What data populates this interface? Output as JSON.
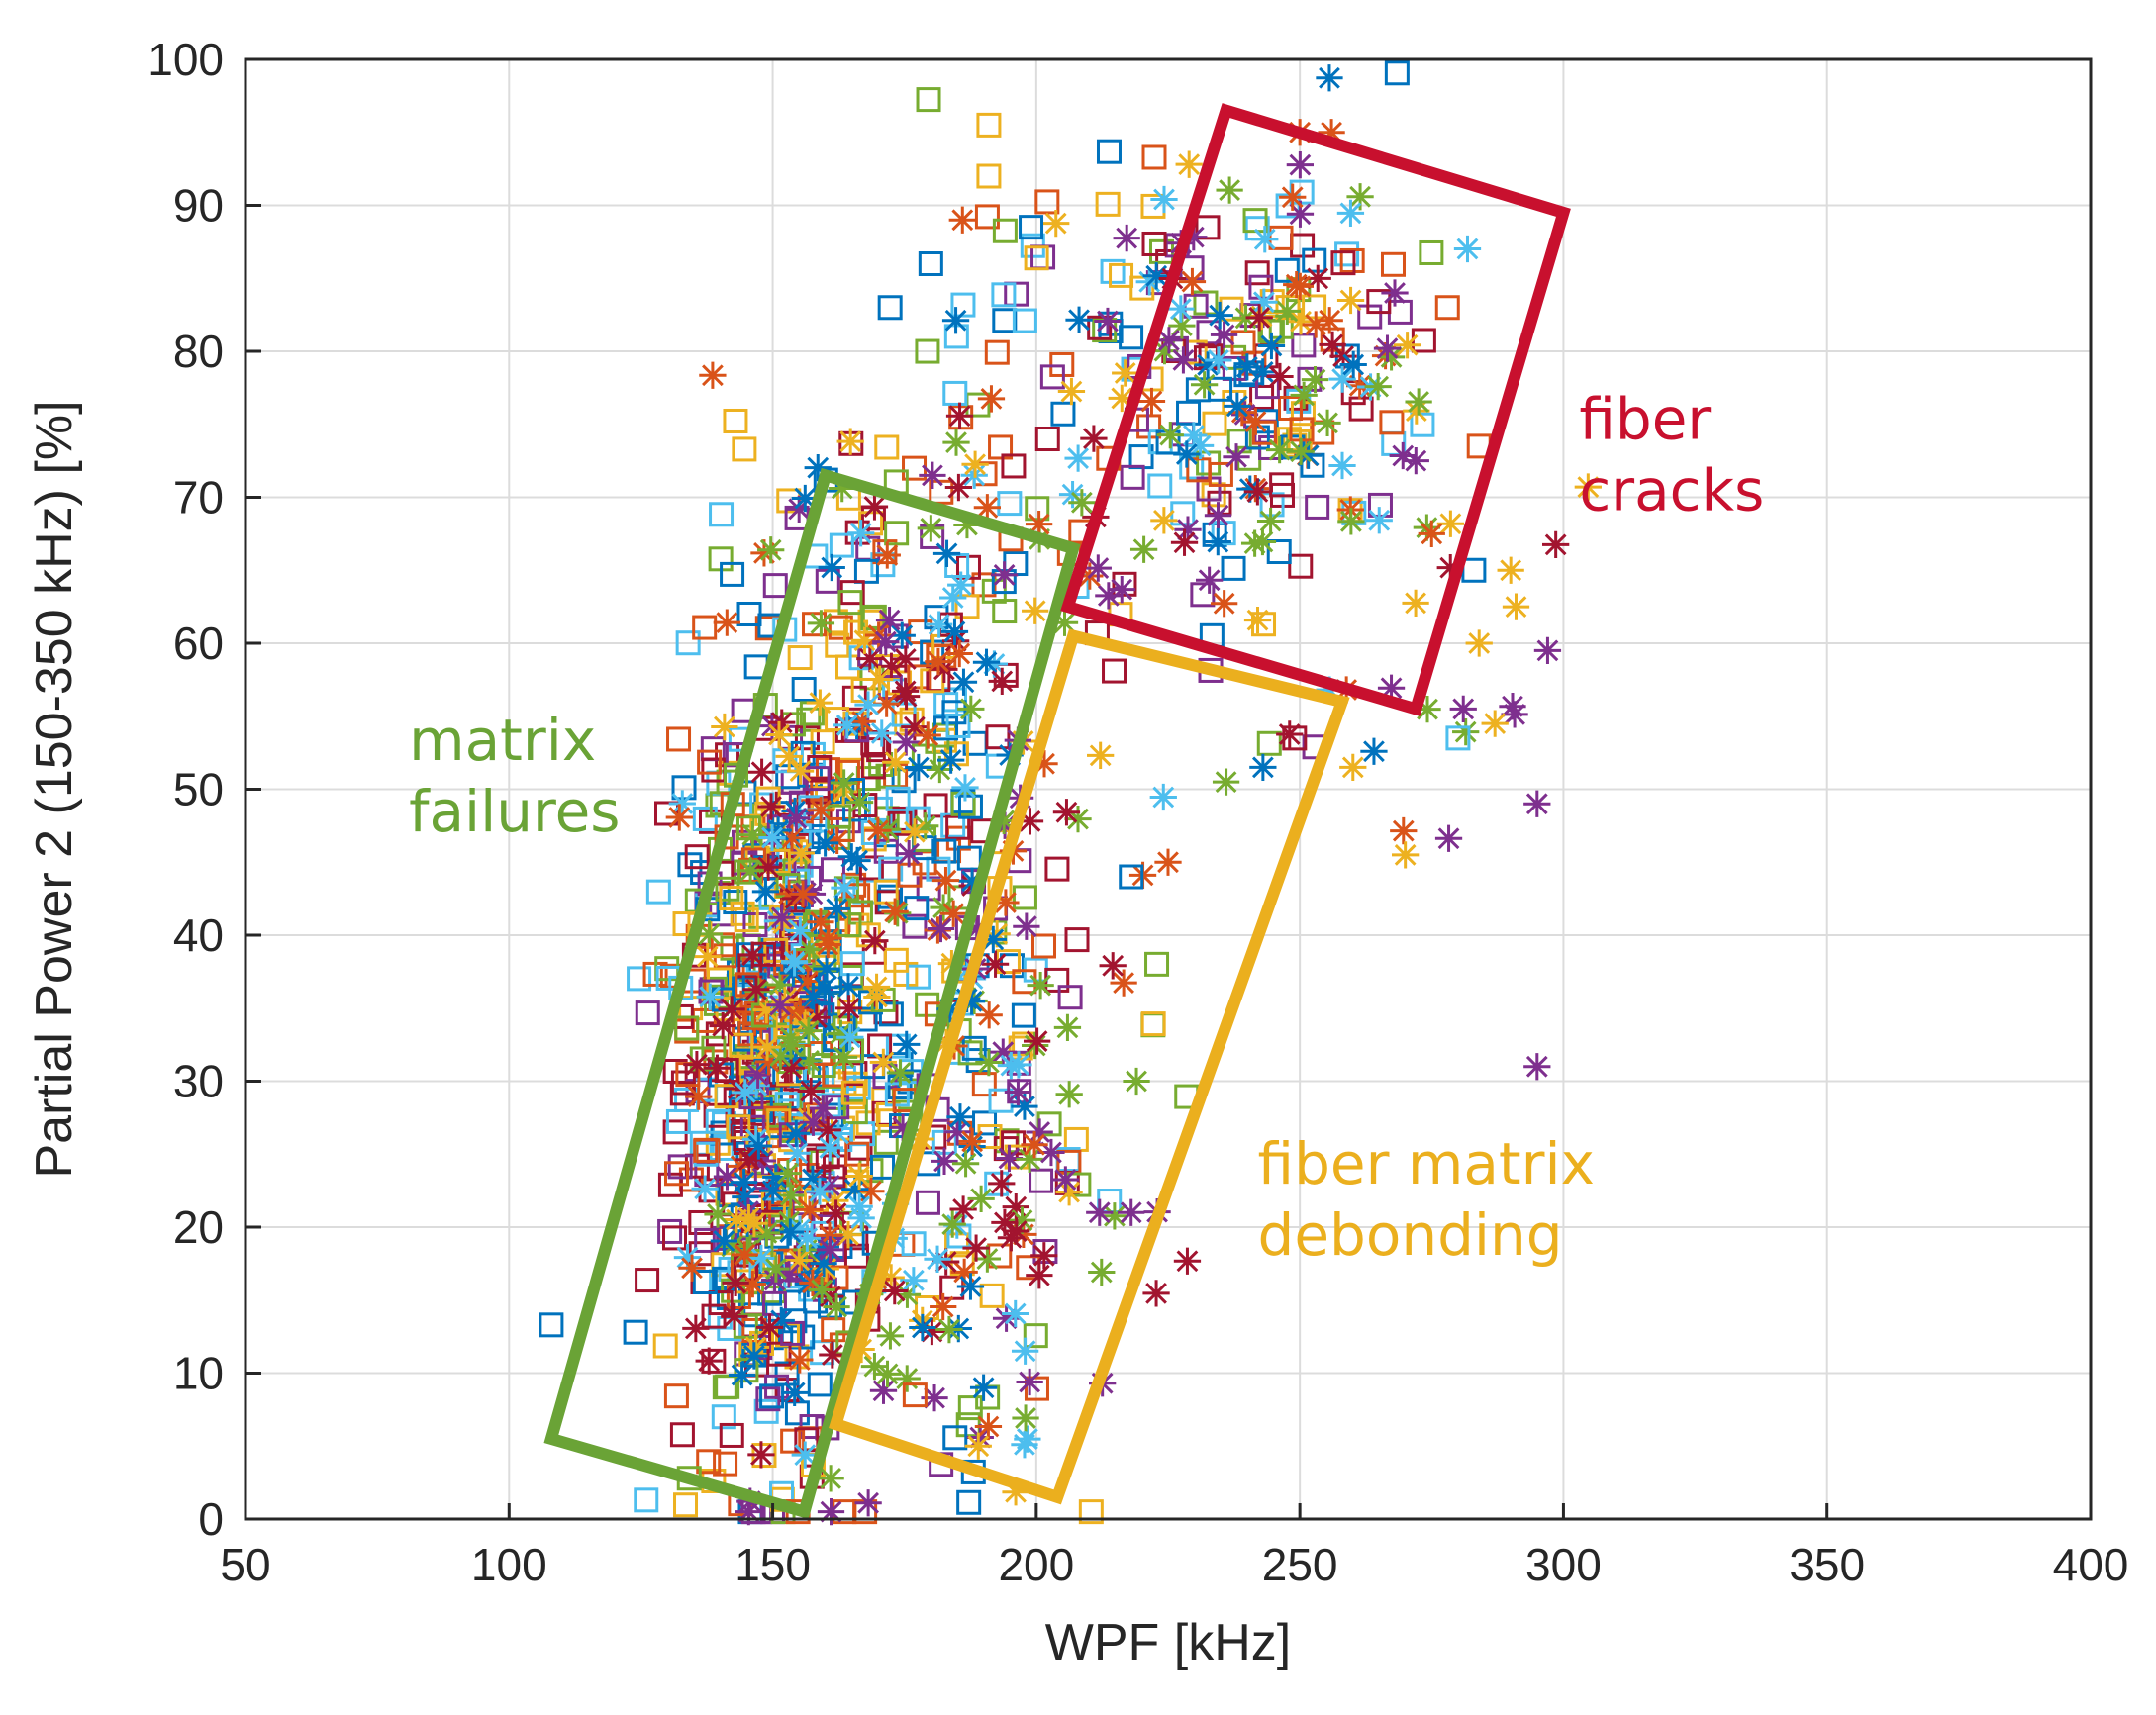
{
  "chart_data": {
    "type": "scatter",
    "title": "",
    "xlabel": "WPF [kHz]",
    "ylabel": "Partial Power 2 (150-350 kHz) [%]",
    "xlim": [
      50,
      400
    ],
    "ylim": [
      0,
      100
    ],
    "grid": true,
    "xticks": [
      50,
      100,
      150,
      200,
      250,
      300,
      350,
      400
    ],
    "yticks": [
      0,
      10,
      20,
      30,
      40,
      50,
      60,
      70,
      80,
      90,
      100
    ],
    "xtick_labels": [
      "50",
      "100",
      "150",
      "200",
      "250",
      "300",
      "350",
      "400"
    ],
    "ytick_labels": [
      "0",
      "10",
      "20",
      "30",
      "40",
      "50",
      "60",
      "70",
      "80",
      "90",
      "100"
    ],
    "marker_colors": [
      "#0072BD",
      "#D95319",
      "#EDB120",
      "#7E2F8E",
      "#77AC30",
      "#4DBEEE",
      "#A2142F"
    ],
    "series": [
      {
        "name": "dense-squares",
        "marker": "square",
        "clusters": [
          {
            "cx": 148,
            "cy": 28,
            "sx": 9,
            "sy": 14,
            "n": 420
          },
          {
            "cx": 160,
            "cy": 42,
            "sx": 11,
            "sy": 12,
            "n": 220
          },
          {
            "cx": 175,
            "cy": 55,
            "sx": 12,
            "sy": 9,
            "n": 90
          },
          {
            "cx": 190,
            "cy": 30,
            "sx": 12,
            "sy": 12,
            "n": 90
          },
          {
            "cx": 245,
            "cy": 78,
            "sx": 14,
            "sy": 8,
            "n": 110
          },
          {
            "cx": 205,
            "cy": 78,
            "sx": 22,
            "sy": 9,
            "n": 60
          }
        ]
      },
      {
        "name": "dense-asterisks",
        "marker": "asterisk",
        "clusters": [
          {
            "cx": 152,
            "cy": 32,
            "sx": 10,
            "sy": 15,
            "n": 180
          },
          {
            "cx": 190,
            "cy": 28,
            "sx": 14,
            "sy": 13,
            "n": 130
          },
          {
            "cx": 175,
            "cy": 55,
            "sx": 12,
            "sy": 9,
            "n": 60
          },
          {
            "cx": 245,
            "cy": 78,
            "sx": 16,
            "sy": 9,
            "n": 80
          },
          {
            "cx": 210,
            "cy": 75,
            "sx": 20,
            "sy": 9,
            "n": 40
          },
          {
            "cx": 270,
            "cy": 60,
            "sx": 14,
            "sy": 8,
            "n": 20
          }
        ]
      }
    ],
    "extra_points": [
      {
        "marker": "square",
        "x": 108,
        "y": 13.3,
        "color": "#0072BD"
      },
      {
        "marker": "square",
        "x": 124,
        "y": 12.8,
        "color": "#0072BD"
      },
      {
        "marker": "square",
        "x": 126,
        "y": 1.3,
        "color": "#4DBEEE"
      },
      {
        "marker": "square",
        "x": 191,
        "y": 95.5,
        "color": "#EDB120"
      },
      {
        "marker": "square",
        "x": 191,
        "y": 92,
        "color": "#EDB120"
      },
      {
        "marker": "square",
        "x": 180,
        "y": 86,
        "color": "#0072BD"
      },
      {
        "marker": "square",
        "x": 199,
        "y": 88.5,
        "color": "#0072BD"
      },
      {
        "marker": "square",
        "x": 218,
        "y": 44,
        "color": "#0072BD"
      },
      {
        "marker": "square",
        "x": 278,
        "y": 83,
        "color": "#D95319"
      },
      {
        "marker": "square",
        "x": 284,
        "y": 73.5,
        "color": "#D95319"
      },
      {
        "marker": "square",
        "x": 280,
        "y": 53.5,
        "color": "#4DBEEE"
      },
      {
        "marker": "square",
        "x": 283,
        "y": 65,
        "color": "#0072BD"
      },
      {
        "marker": "square",
        "x": 249,
        "y": 53.5,
        "color": "#A2142F"
      },
      {
        "marker": "square",
        "x": 177,
        "y": 8.5,
        "color": "#D95319"
      },
      {
        "marker": "asterisk",
        "x": 250,
        "y": 95,
        "color": "#D95319"
      },
      {
        "marker": "asterisk",
        "x": 256,
        "y": 95,
        "color": "#D95319"
      },
      {
        "marker": "asterisk",
        "x": 186,
        "y": 89,
        "color": "#D95319"
      },
      {
        "marker": "asterisk",
        "x": 225,
        "y": 45,
        "color": "#D95319"
      },
      {
        "marker": "asterisk",
        "x": 270,
        "y": 45.5,
        "color": "#EDB120"
      },
      {
        "marker": "asterisk",
        "x": 295,
        "y": 31,
        "color": "#7E2F8E"
      },
      {
        "marker": "asterisk",
        "x": 295,
        "y": 49,
        "color": "#7E2F8E"
      },
      {
        "marker": "asterisk",
        "x": 297,
        "y": 59.5,
        "color": "#7E2F8E"
      },
      {
        "marker": "asterisk",
        "x": 291,
        "y": 62.5,
        "color": "#EDB120"
      },
      {
        "marker": "asterisk",
        "x": 290,
        "y": 65,
        "color": "#EDB120"
      },
      {
        "marker": "asterisk",
        "x": 284,
        "y": 60,
        "color": "#EDB120"
      },
      {
        "marker": "asterisk",
        "x": 287,
        "y": 54.5,
        "color": "#EDB120"
      },
      {
        "marker": "asterisk",
        "x": 281,
        "y": 55.5,
        "color": "#7E2F8E"
      },
      {
        "marker": "asterisk",
        "x": 236,
        "y": 50.5,
        "color": "#77AC30"
      },
      {
        "marker": "asterisk",
        "x": 243,
        "y": 51.5,
        "color": "#0072BD"
      },
      {
        "marker": "asterisk",
        "x": 272,
        "y": 72.5,
        "color": "#7E2F8E"
      },
      {
        "marker": "asterisk",
        "x": 268,
        "y": 84,
        "color": "#7E2F8E"
      },
      {
        "marker": "asterisk",
        "x": 275,
        "y": 67.5,
        "color": "#D95319"
      },
      {
        "marker": "asterisk",
        "x": 219,
        "y": 30,
        "color": "#77AC30"
      },
      {
        "marker": "asterisk",
        "x": 212,
        "y": 21,
        "color": "#7E2F8E"
      },
      {
        "marker": "asterisk",
        "x": 218,
        "y": 21,
        "color": "#7E2F8E"
      },
      {
        "marker": "asterisk",
        "x": 189,
        "y": 5,
        "color": "#EDB120"
      },
      {
        "marker": "asterisk",
        "x": 190,
        "y": 9,
        "color": "#0072BD"
      }
    ],
    "regions": [
      {
        "name": "matrix-failures",
        "label_lines": [
          "matrix",
          "failures"
        ],
        "color": "#6AA336",
        "corners": [
          [
            160,
            71.5
          ],
          [
            207,
            66.5
          ],
          [
            156,
            0.5
          ],
          [
            108,
            5.5
          ]
        ],
        "label_anchor": [
          81,
          52
        ]
      },
      {
        "name": "fiber-cracks",
        "label_lines": [
          "fiber",
          "cracks"
        ],
        "color": "#C8102E",
        "corners": [
          [
            236,
            96.5
          ],
          [
            300,
            89.5
          ],
          [
            272,
            55.5
          ],
          [
            206,
            62.5
          ]
        ],
        "label_anchor": [
          303,
          74
        ]
      },
      {
        "name": "fiber-matrix-debonding",
        "label_lines": [
          "fiber matrix",
          "debonding"
        ],
        "color": "#EBAF1E",
        "corners": [
          [
            207,
            60.5
          ],
          [
            258,
            56
          ],
          [
            204,
            1.5
          ],
          [
            162,
            6.5
          ]
        ],
        "label_anchor": [
          242,
          23
        ]
      }
    ]
  }
}
